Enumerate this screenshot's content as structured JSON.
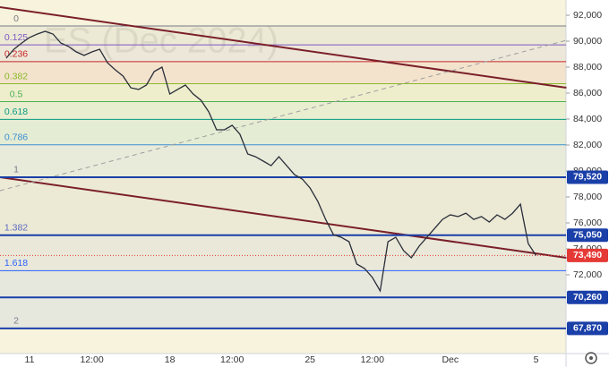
{
  "chart_data": {
    "type": "line",
    "watermark": "ES (Dec 2024)",
    "categories": [
      null,
      null,
      null,
      "11",
      null,
      null,
      null,
      null,
      null,
      null,
      null,
      "12:00",
      null,
      null,
      null,
      null,
      null,
      null,
      null,
      null,
      null,
      "18",
      null,
      null,
      null,
      null,
      null,
      null,
      null,
      "12:00",
      null,
      null,
      null,
      null,
      null,
      null,
      null,
      null,
      null,
      "25",
      null,
      null,
      null,
      null,
      null,
      null,
      null,
      "12:00",
      null,
      null,
      null,
      null,
      null,
      null,
      null,
      null,
      null,
      "Dec",
      null,
      null,
      null,
      null,
      null,
      null,
      null,
      null,
      null,
      null,
      "5"
    ],
    "values": [
      88690,
      89380,
      89860,
      90280,
      90550,
      90760,
      90550,
      89860,
      89590,
      89170,
      88900,
      89170,
      89380,
      88340,
      87790,
      87310,
      86410,
      86280,
      86620,
      87660,
      88000,
      85930,
      86280,
      86620,
      85930,
      85450,
      84550,
      83170,
      83170,
      83520,
      82830,
      81310,
      81100,
      80760,
      80410,
      81100,
      80410,
      79720,
      79380,
      78690,
      77650,
      76270,
      75100,
      74890,
      74550,
      72830,
      72480,
      71790,
      70760,
      74550,
      74890,
      73860,
      73310,
      74210,
      74890,
      75580,
      76270,
      76620,
      76480,
      76750,
      76270,
      76480,
      76070,
      76620,
      76270,
      76750,
      77440,
      74410,
      73490
    ],
    "color": "#2a2e39",
    "ylim": [
      66000,
      93000
    ],
    "yticks": [
      {
        "value": 72000,
        "label": "72,000"
      },
      {
        "value": 74000,
        "label": "74,000"
      },
      {
        "value": 76000,
        "label": "76,000"
      },
      {
        "value": 78000,
        "label": "78,000"
      },
      {
        "value": 80000,
        "label": "80,000"
      },
      {
        "value": 82000,
        "label": "82,000"
      },
      {
        "value": 84000,
        "label": "84,000"
      },
      {
        "value": 86000,
        "label": "86,000"
      },
      {
        "value": 88000,
        "label": "88,000"
      },
      {
        "value": 90000,
        "label": "90,000"
      },
      {
        "value": 92000,
        "label": "92,000"
      }
    ],
    "fib_levels": [
      {
        "label": "0",
        "value": 91170,
        "color": "#787b86"
      },
      {
        "label": "0.125",
        "value": 89714,
        "color": "#7e57c2"
      },
      {
        "label": "0.236",
        "value": 88420,
        "color": "#c62828"
      },
      {
        "label": "0.382",
        "value": 86720,
        "color": "#8bb82c"
      },
      {
        "label": "0.5",
        "value": 85345,
        "color": "#4caf50"
      },
      {
        "label": "0.618",
        "value": 83970,
        "color": "#089981"
      },
      {
        "label": "0.786",
        "value": 82013,
        "color": "#3d8fd1"
      },
      {
        "label": "1",
        "value": 79520,
        "color": "#787b86"
      },
      {
        "label": "1.382",
        "value": 75070,
        "color": "#5c6bc0"
      },
      {
        "label": "1.618",
        "value": 72320,
        "color": "#2962ff"
      },
      {
        "label": "2",
        "value": 67870,
        "color": "#787b86"
      }
    ],
    "price_marks": [
      {
        "value": 79520,
        "label": "79,520",
        "color": "#1a3fa8"
      },
      {
        "value": 75050,
        "label": "75,050",
        "color": "#1a3fa8"
      },
      {
        "value": 73490,
        "label": "73,490",
        "color": "#e53935"
      },
      {
        "value": 70260,
        "label": "70,260",
        "color": "#1a3fa8"
      },
      {
        "value": 67870,
        "label": "67,870",
        "color": "#1a3fa8"
      }
    ],
    "trendlines": [
      {
        "x": [
          -0.8,
          71.9
        ],
        "values": [
          92621,
          86414
        ],
        "color": "#7b1f2a"
      },
      {
        "x": [
          -0.8,
          71.9
        ],
        "values": [
          79517,
          73310
        ],
        "color": "#7b1f2a"
      },
      {
        "x": [
          -0.8,
          71.9
        ],
        "values": [
          78483,
          90069
        ],
        "color": "#9e9e9e",
        "dashed": true
      }
    ]
  }
}
